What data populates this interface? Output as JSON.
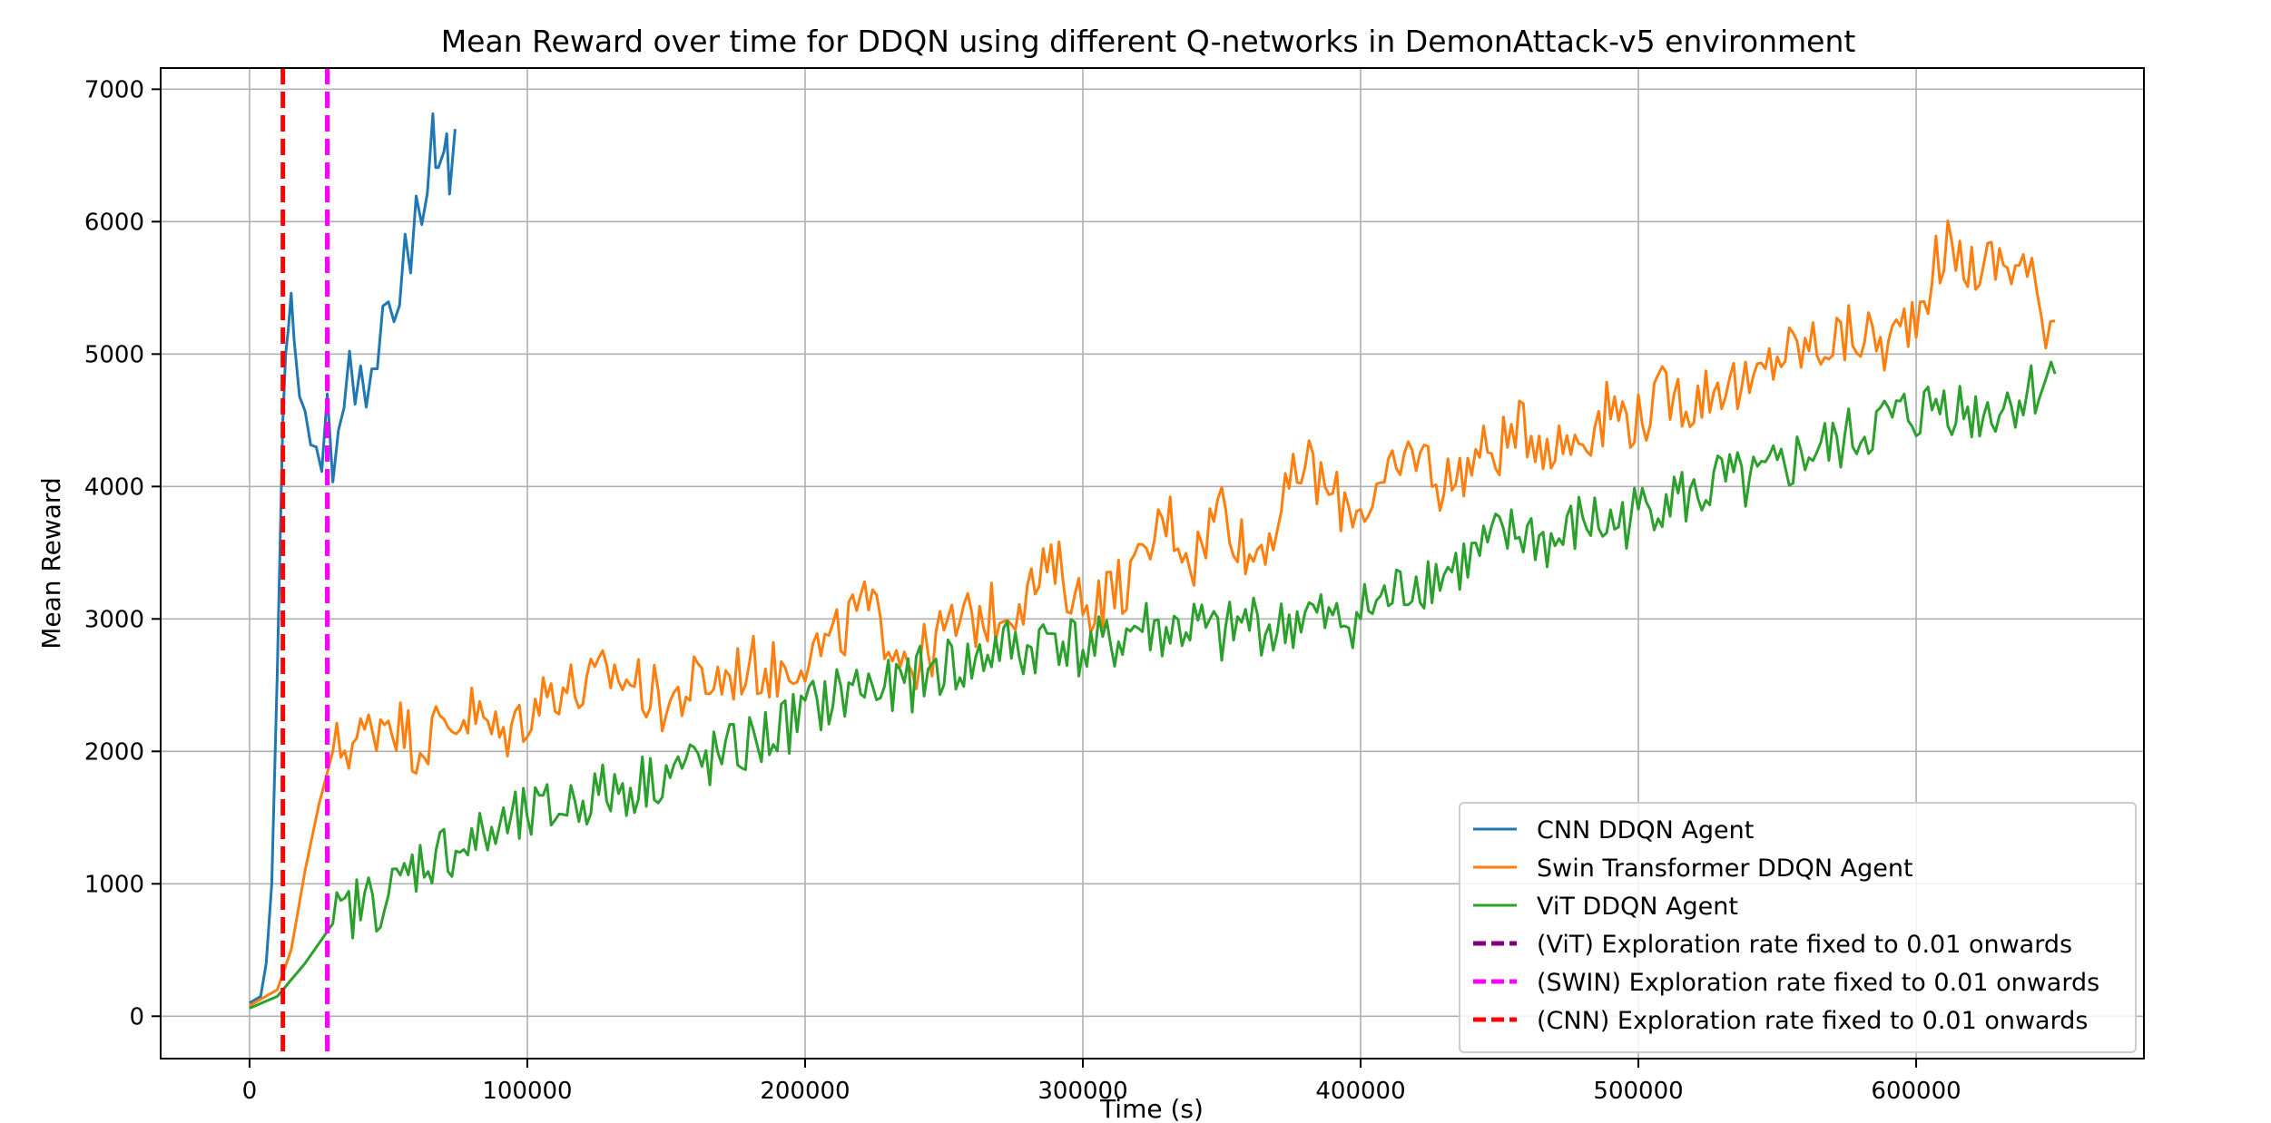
{
  "chart_data": {
    "type": "line",
    "title": "Mean Reward over time for DDQN using different Q-networks in DemonAttack-v5 environment",
    "xlabel": "Time (s)",
    "ylabel": "Mean Reward",
    "xlim": [
      -32000,
      682000
    ],
    "ylim": [
      -320,
      7160
    ],
    "xticks": [
      0,
      100000,
      200000,
      300000,
      400000,
      500000,
      600000
    ],
    "yticks": [
      0,
      1000,
      2000,
      3000,
      4000,
      5000,
      6000,
      7000
    ],
    "grid": true,
    "legend_position": "bottom-right",
    "series": [
      {
        "name": "CNN DDQN Agent",
        "color": "#1f77b4",
        "points": [
          [
            0,
            100
          ],
          [
            4000,
            150
          ],
          [
            6000,
            400
          ],
          [
            8000,
            1000
          ],
          [
            10000,
            2600
          ],
          [
            12000,
            4500
          ],
          [
            13000,
            5000
          ],
          [
            14000,
            5200
          ],
          [
            15000,
            5350
          ],
          [
            16000,
            5000
          ],
          [
            18000,
            4800
          ],
          [
            20000,
            4600
          ],
          [
            22000,
            4200
          ],
          [
            24000,
            4400
          ],
          [
            26000,
            4150
          ],
          [
            28000,
            4700
          ],
          [
            30000,
            4000
          ],
          [
            32000,
            4500
          ],
          [
            34000,
            4700
          ],
          [
            36000,
            4900
          ],
          [
            38000,
            4650
          ],
          [
            40000,
            5000
          ],
          [
            42000,
            4600
          ],
          [
            44000,
            4950
          ],
          [
            46000,
            5000
          ],
          [
            48000,
            5300
          ],
          [
            50000,
            5450
          ],
          [
            52000,
            5300
          ],
          [
            54000,
            5500
          ],
          [
            56000,
            5800
          ],
          [
            58000,
            5700
          ],
          [
            60000,
            6100
          ],
          [
            62000,
            6000
          ],
          [
            64000,
            6300
          ],
          [
            66000,
            6800
          ],
          [
            67000,
            6450
          ],
          [
            68000,
            6350
          ],
          [
            70000,
            6500
          ],
          [
            71000,
            6780
          ],
          [
            72000,
            6300
          ],
          [
            74000,
            6700
          ]
        ]
      },
      {
        "name": "Swin Transformer DDQN Agent",
        "color": "#ff7f0e",
        "points": [
          [
            0,
            80
          ],
          [
            10000,
            200
          ],
          [
            15000,
            500
          ],
          [
            20000,
            1100
          ],
          [
            25000,
            1600
          ],
          [
            30000,
            2000
          ],
          [
            40000,
            2100
          ],
          [
            50000,
            2300
          ],
          [
            60000,
            2050
          ],
          [
            70000,
            2200
          ],
          [
            80000,
            2300
          ],
          [
            90000,
            2100
          ],
          [
            100000,
            2300
          ],
          [
            110000,
            2500
          ],
          [
            120000,
            2450
          ],
          [
            130000,
            2600
          ],
          [
            140000,
            2500
          ],
          [
            150000,
            2350
          ],
          [
            160000,
            2500
          ],
          [
            170000,
            2550
          ],
          [
            180000,
            2650
          ],
          [
            190000,
            2600
          ],
          [
            200000,
            2750
          ],
          [
            210000,
            2800
          ],
          [
            220000,
            3100
          ],
          [
            230000,
            2900
          ],
          [
            240000,
            2650
          ],
          [
            250000,
            2900
          ],
          [
            260000,
            3000
          ],
          [
            270000,
            3050
          ],
          [
            280000,
            3200
          ],
          [
            290000,
            3400
          ],
          [
            300000,
            3100
          ],
          [
            310000,
            3200
          ],
          [
            320000,
            3350
          ],
          [
            330000,
            3800
          ],
          [
            340000,
            3450
          ],
          [
            350000,
            3900
          ],
          [
            360000,
            3450
          ],
          [
            370000,
            3750
          ],
          [
            380000,
            4200
          ],
          [
            390000,
            3900
          ],
          [
            400000,
            3850
          ],
          [
            410000,
            4000
          ],
          [
            420000,
            4300
          ],
          [
            430000,
            4000
          ],
          [
            440000,
            4200
          ],
          [
            450000,
            4300
          ],
          [
            460000,
            4450
          ],
          [
            470000,
            4300
          ],
          [
            480000,
            4400
          ],
          [
            490000,
            4600
          ],
          [
            500000,
            4500
          ],
          [
            510000,
            4700
          ],
          [
            520000,
            4650
          ],
          [
            530000,
            4800
          ],
          [
            540000,
            4700
          ],
          [
            550000,
            5000
          ],
          [
            560000,
            5050
          ],
          [
            570000,
            5100
          ],
          [
            580000,
            5150
          ],
          [
            590000,
            5050
          ],
          [
            600000,
            5350
          ],
          [
            610000,
            5800
          ],
          [
            620000,
            5650
          ],
          [
            630000,
            5700
          ],
          [
            640000,
            5650
          ],
          [
            645000,
            5300
          ],
          [
            650000,
            5250
          ]
        ]
      },
      {
        "name": "ViT DDQN Agent",
        "color": "#2ca02c",
        "points": [
          [
            0,
            60
          ],
          [
            10000,
            150
          ],
          [
            20000,
            400
          ],
          [
            30000,
            700
          ],
          [
            40000,
            850
          ],
          [
            50000,
            900
          ],
          [
            60000,
            1150
          ],
          [
            70000,
            1250
          ],
          [
            80000,
            1300
          ],
          [
            90000,
            1400
          ],
          [
            100000,
            1500
          ],
          [
            110000,
            1550
          ],
          [
            120000,
            1650
          ],
          [
            130000,
            1700
          ],
          [
            140000,
            1750
          ],
          [
            150000,
            1850
          ],
          [
            160000,
            1900
          ],
          [
            170000,
            1950
          ],
          [
            180000,
            2050
          ],
          [
            190000,
            2150
          ],
          [
            200000,
            2300
          ],
          [
            210000,
            2400
          ],
          [
            220000,
            2500
          ],
          [
            230000,
            2450
          ],
          [
            240000,
            2550
          ],
          [
            250000,
            2650
          ],
          [
            260000,
            2650
          ],
          [
            270000,
            2800
          ],
          [
            280000,
            2750
          ],
          [
            290000,
            2900
          ],
          [
            300000,
            2750
          ],
          [
            310000,
            2800
          ],
          [
            320000,
            2950
          ],
          [
            330000,
            2900
          ],
          [
            340000,
            2950
          ],
          [
            350000,
            2850
          ],
          [
            360000,
            3000
          ],
          [
            370000,
            2900
          ],
          [
            380000,
            3050
          ],
          [
            390000,
            2950
          ],
          [
            400000,
            3050
          ],
          [
            410000,
            3150
          ],
          [
            420000,
            3300
          ],
          [
            430000,
            3350
          ],
          [
            440000,
            3450
          ],
          [
            450000,
            3600
          ],
          [
            460000,
            3650
          ],
          [
            470000,
            3550
          ],
          [
            480000,
            3750
          ],
          [
            490000,
            3700
          ],
          [
            500000,
            3800
          ],
          [
            510000,
            3950
          ],
          [
            520000,
            3900
          ],
          [
            530000,
            4050
          ],
          [
            540000,
            4000
          ],
          [
            550000,
            4100
          ],
          [
            560000,
            4250
          ],
          [
            570000,
            4300
          ],
          [
            580000,
            4400
          ],
          [
            590000,
            4500
          ],
          [
            600000,
            4550
          ],
          [
            610000,
            4650
          ],
          [
            620000,
            4550
          ],
          [
            630000,
            4600
          ],
          [
            640000,
            4700
          ],
          [
            650000,
            4850
          ]
        ]
      }
    ],
    "vlines": [
      {
        "name": "(ViT) Exploration rate fixed to 0.01 onwards",
        "x": 28000,
        "color": "#800080",
        "style": "dashed"
      },
      {
        "name": "(SWIN) Exploration rate fixed to 0.01 onwards",
        "x": 28000,
        "color": "#ff00ff",
        "style": "dashed"
      },
      {
        "name": "(CNN) Exploration rate fixed to 0.01 onwards",
        "x": 12000,
        "color": "#ff0000",
        "style": "dashed"
      }
    ]
  }
}
